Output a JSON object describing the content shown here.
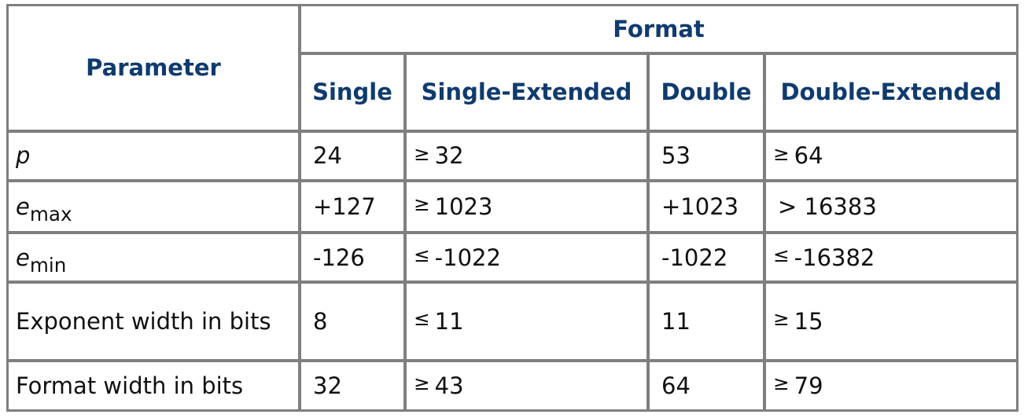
{
  "header": {
    "parameter": "Parameter",
    "format": "Format",
    "columns": [
      "Single",
      "Single-Extended",
      "Double",
      "Double-Extended"
    ]
  },
  "rows": [
    {
      "label": "p",
      "cells": [
        {
          "rel": "",
          "value": "24"
        },
        {
          "rel": "≥",
          "value": "32"
        },
        {
          "rel": "",
          "value": "53"
        },
        {
          "rel": "≥",
          "value": "64"
        }
      ]
    },
    {
      "label": "e",
      "label_sub": "max",
      "cells": [
        {
          "rel": "",
          "value": "+127"
        },
        {
          "rel": "≥",
          "value": "1023"
        },
        {
          "rel": "",
          "value": "+1023"
        },
        {
          "rel": "",
          "value": "> 16383"
        }
      ]
    },
    {
      "label": "e",
      "label_sub": "min",
      "cells": [
        {
          "rel": "",
          "value": "-126"
        },
        {
          "rel": "≤",
          "value": "-1022"
        },
        {
          "rel": "",
          "value": "-1022"
        },
        {
          "rel": "≤",
          "value": "-16382"
        }
      ]
    },
    {
      "label": "Exponent width in bits",
      "cells": [
        {
          "rel": "",
          "value": "8"
        },
        {
          "rel": "≤",
          "value": "11"
        },
        {
          "rel": "",
          "value": "11"
        },
        {
          "rel": "≥",
          "value": "15"
        }
      ]
    },
    {
      "label": "Format width in bits",
      "cells": [
        {
          "rel": "",
          "value": "32"
        },
        {
          "rel": "≥",
          "value": "43"
        },
        {
          "rel": "",
          "value": "64"
        },
        {
          "rel": "≥",
          "value": "79"
        }
      ]
    }
  ]
}
